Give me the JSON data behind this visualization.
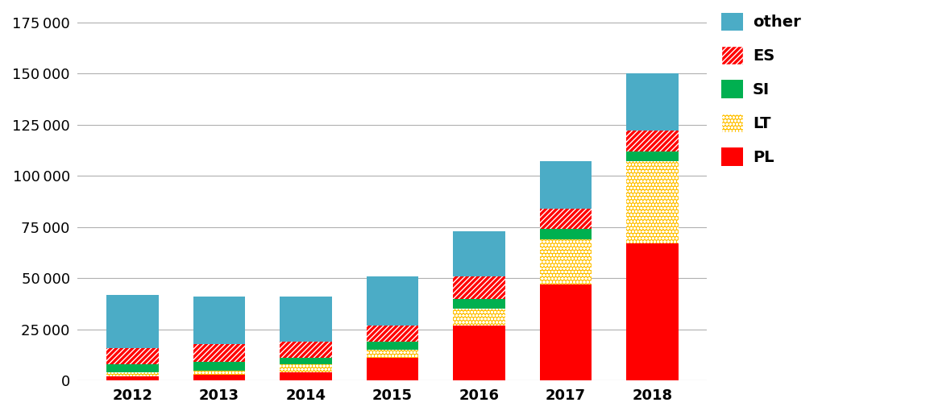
{
  "years": [
    2012,
    2013,
    2014,
    2015,
    2016,
    2017,
    2018
  ],
  "PL": [
    2000,
    3000,
    4000,
    11000,
    27000,
    47000,
    67000
  ],
  "LT": [
    2000,
    2000,
    4000,
    4000,
    8000,
    22000,
    40000
  ],
  "SI": [
    4000,
    4000,
    3000,
    4000,
    5000,
    5000,
    5000
  ],
  "ES": [
    8000,
    9000,
    8000,
    8000,
    11000,
    10000,
    10000
  ],
  "other": [
    26000,
    23000,
    22000,
    24000,
    22000,
    23000,
    28000
  ],
  "PL_color": "#ff0000",
  "LT_color": "#ffc000",
  "SI_color": "#00b050",
  "other_color": "#4bacc6",
  "ES_fg": "#ff0000",
  "ylim": [
    0,
    180000
  ],
  "yticks": [
    0,
    25000,
    50000,
    75000,
    100000,
    125000,
    150000,
    175000
  ],
  "background_color": "#ffffff",
  "grid_color": "#b0b0b0"
}
